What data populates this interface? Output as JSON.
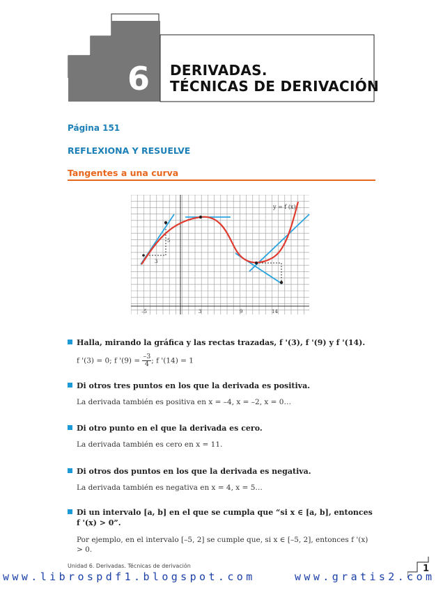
{
  "header": {
    "chapter_number": "6",
    "title_line1": "DERIVADAS.",
    "title_line2": "TÉCNICAS DE DERIVACIÓN"
  },
  "page_label": "Página 151",
  "section_label": "REFLEXIONA Y RESUELVE",
  "subsection_label": "Tangentes a una curva",
  "graph": {
    "function_label": "y = f (x)",
    "x_ticks": [
      "–5",
      "3",
      "9",
      "14"
    ],
    "y_tick": "5",
    "step_label": "3",
    "colors": {
      "curve": "#e03a2e",
      "tangent": "#2aa4df",
      "grid": "#999999"
    }
  },
  "questions": [
    {
      "question": "Halla, mirando la gráfica y las rectas trazadas, f '(3), f '(9) y f '(14).",
      "answer_pre": "f '(3) = 0;  f '(9) =",
      "answer_frac_num": "–3",
      "answer_frac_den": "4",
      "answer_post": ";  f '(14) = 1"
    },
    {
      "question": "Di otros tres puntos en los que la derivada es positiva.",
      "answer": "La derivada también es positiva en  x = –4, x = –2, x = 0…"
    },
    {
      "question": "Di otro punto en el que la derivada es cero.",
      "answer": "La derivada también es cero en  x = 11."
    },
    {
      "question": "Di otros dos puntos en los que la derivada es negativa.",
      "answer": "La derivada también es negativa en  x = 4, x = 5…"
    },
    {
      "question_line1": "Di un intervalo  [a, b]  en el que se cumpla que  “si  x ∈ [a, b],  entonces",
      "question_line2": "f '(x) > 0”.",
      "answer": "Por ejemplo, en el intervalo [–5, 2] se cumple que, si  x ∈ [–5, 2],  entonces  f '(x) > 0."
    }
  ],
  "footer": {
    "unit_text": "Unidad 6. Derivadas. Técnicas de derivación",
    "page_number": "1"
  },
  "watermarks": {
    "left": "www.librospdf1.blogspot.com",
    "right": "www.gratis2.com"
  }
}
